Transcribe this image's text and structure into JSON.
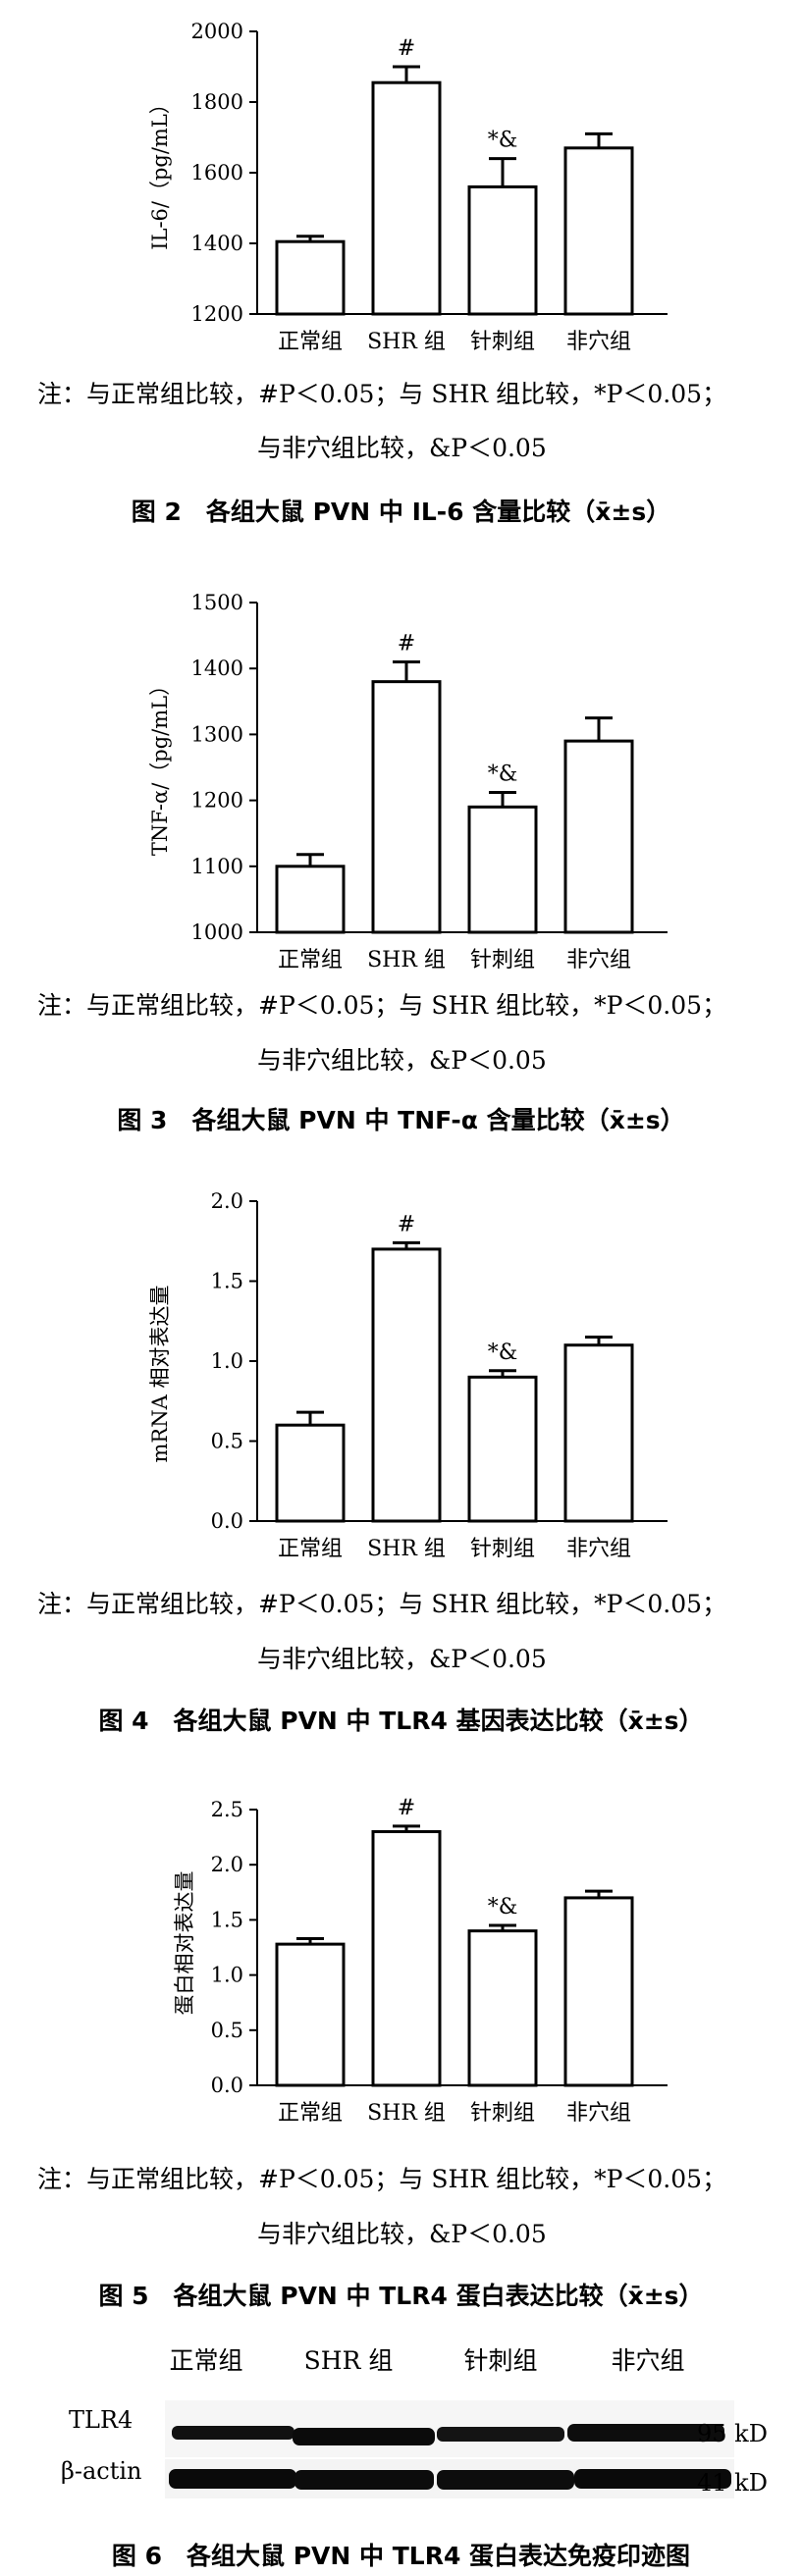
{
  "chart_data": [
    {
      "type": "bar",
      "categories": [
        "正常组",
        "SHR 组",
        "针刺组",
        "非穴组"
      ],
      "values": [
        1405,
        1855,
        1560,
        1670
      ],
      "errors": [
        15,
        45,
        80,
        40
      ],
      "markers": [
        "",
        "#",
        "*&",
        ""
      ],
      "ylabel": "IL-6/（pg/mL）",
      "ylim": [
        1200,
        2000
      ],
      "yticks": [
        "1200",
        "1400",
        "1600",
        "1800",
        "2000"
      ],
      "note": "注：与正常组比较，#P＜0.05；与 SHR 组比较，*P＜0.05；",
      "note2": "与非穴组比较，&P＜0.05",
      "caption": "图 2　各组大鼠 PVN 中 IL-6 含量比较（x̄±s）"
    },
    {
      "type": "bar",
      "categories": [
        "正常组",
        "SHR 组",
        "针刺组",
        "非穴组"
      ],
      "values": [
        1100,
        1380,
        1190,
        1290
      ],
      "errors": [
        18,
        30,
        22,
        35
      ],
      "markers": [
        "",
        "#",
        "*&",
        ""
      ],
      "ylabel": "TNF-α/（pg/mL）",
      "ylim": [
        1000,
        1500
      ],
      "yticks": [
        "1000",
        "1100",
        "1200",
        "1300",
        "1400",
        "1500"
      ],
      "note": "注：与正常组比较，#P＜0.05；与 SHR 组比较，*P＜0.05；",
      "note2": "与非穴组比较，&P＜0.05",
      "caption": "图 3　各组大鼠 PVN 中 TNF-α 含量比较（x̄±s）"
    },
    {
      "type": "bar",
      "categories": [
        "正常组",
        "SHR 组",
        "针刺组",
        "非穴组"
      ],
      "values": [
        0.6,
        1.7,
        0.9,
        1.1
      ],
      "errors": [
        0.08,
        0.04,
        0.04,
        0.05
      ],
      "markers": [
        "",
        "#",
        "*&",
        ""
      ],
      "ylabel": "mRNA 相对表达量",
      "ylim": [
        0,
        2.0
      ],
      "yticks": [
        "0.0",
        "0.5",
        "1.0",
        "1.5",
        "2.0"
      ],
      "note": "注：与正常组比较，#P＜0.05；与 SHR 组比较，*P＜0.05；",
      "note2": "与非穴组比较，&P＜0.05",
      "caption": "图 4　各组大鼠 PVN 中 TLR4 基因表达比较（x̄±s）"
    },
    {
      "type": "bar",
      "categories": [
        "正常组",
        "SHR 组",
        "针刺组",
        "非穴组"
      ],
      "values": [
        1.28,
        2.3,
        1.4,
        1.7
      ],
      "errors": [
        0.05,
        0.05,
        0.05,
        0.06
      ],
      "markers": [
        "",
        "#",
        "*&",
        ""
      ],
      "ylabel": "蛋白相对表达量",
      "ylim": [
        0,
        2.5
      ],
      "yticks": [
        "0.0",
        "0.5",
        "1.0",
        "1.5",
        "2.0",
        "2.5"
      ],
      "note": "注：与正常组比较，#P＜0.05；与 SHR 组比较，*P＜0.05；",
      "note2": "与非穴组比较，&P＜0.05",
      "caption": "图 5　各组大鼠 PVN 中 TLR4 蛋白表达比较（x̄±s）"
    }
  ],
  "blot": {
    "groups": [
      "正常组",
      "SHR 组",
      "针刺组",
      "非穴组"
    ],
    "rows": [
      {
        "label": "TLR4",
        "size": "95 kD"
      },
      {
        "label": "β-actin",
        "size": "41 kD"
      }
    ],
    "caption": "图 6　各组大鼠 PVN 中 TLR4 蛋白表达免疫印迹图"
  }
}
